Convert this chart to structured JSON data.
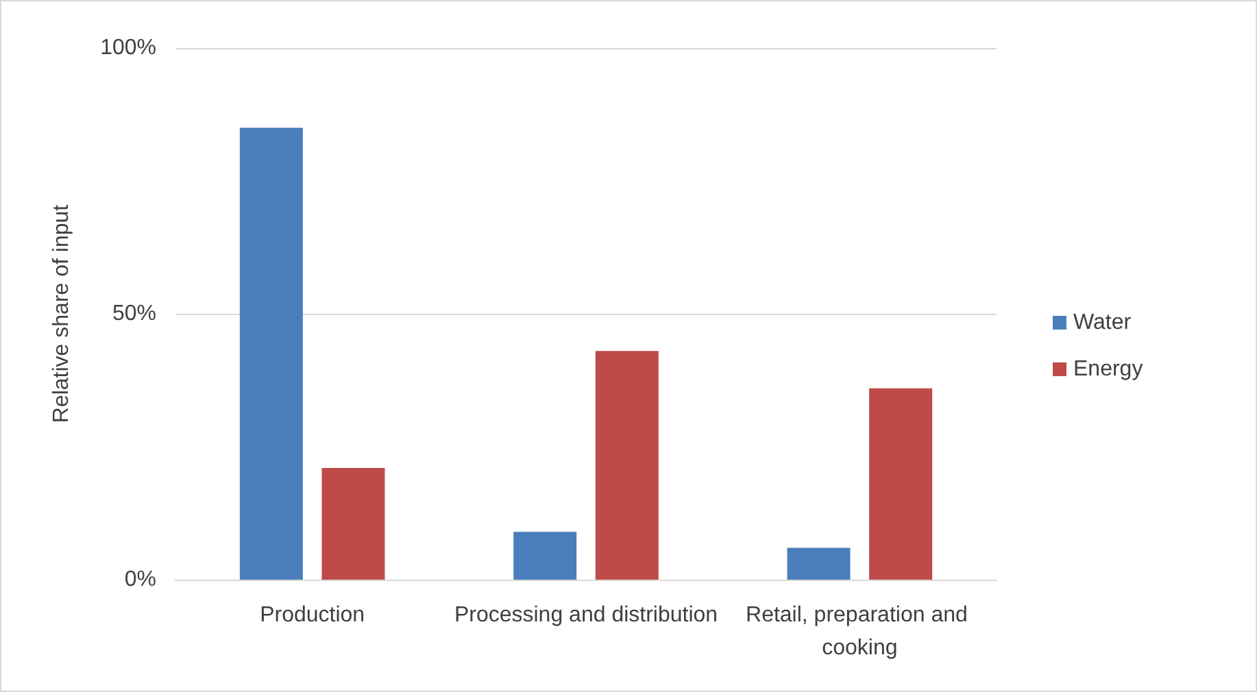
{
  "chart_data": {
    "type": "bar",
    "ylabel": "Relative share of input",
    "categories": [
      "Production",
      "Processing and distribution",
      "Retail, preparation and cooking"
    ],
    "series": [
      {
        "name": "Water",
        "color": "#4a7ebb",
        "values": [
          85,
          9,
          6
        ]
      },
      {
        "name": "Energy",
        "color": "#be4b48",
        "values": [
          21,
          43,
          36
        ]
      }
    ],
    "ylim": [
      0,
      100
    ],
    "yticks": [
      {
        "value": 0,
        "label": "0%"
      },
      {
        "value": 50,
        "label": "50%"
      },
      {
        "value": 100,
        "label": "100%"
      }
    ],
    "grid": "y",
    "legend": "right"
  }
}
